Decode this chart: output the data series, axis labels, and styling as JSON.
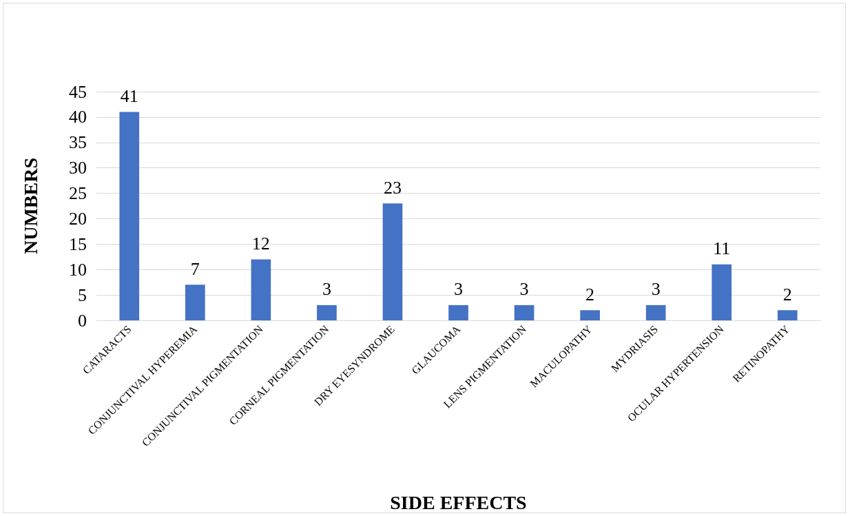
{
  "chart_data": {
    "type": "bar",
    "xlabel": "SIDE EFFECTS",
    "ylabel": "NUMBERS",
    "categories": [
      "CATARACTS",
      "CONJUNCTIVAL HYPEREMIA",
      "CONJUNCTIVAL PIGMENTATION",
      "CORNEAL PIGMENTATION",
      "DRY EYESYNDROME",
      "GLAUCOMA",
      "LENS PIGMENTATION",
      "MACULOPATHY",
      "MYDRIASIS",
      "OCULAR HYPERTENSION",
      "RETINOPATHY"
    ],
    "values": [
      41,
      7,
      12,
      3,
      23,
      3,
      3,
      2,
      3,
      11,
      2
    ],
    "color": "#4472c4",
    "ylim": [
      0,
      45
    ],
    "yticks": [
      0,
      5,
      10,
      15,
      20,
      25,
      30,
      35,
      40,
      45
    ],
    "grid": "y",
    "data_labels": true
  }
}
